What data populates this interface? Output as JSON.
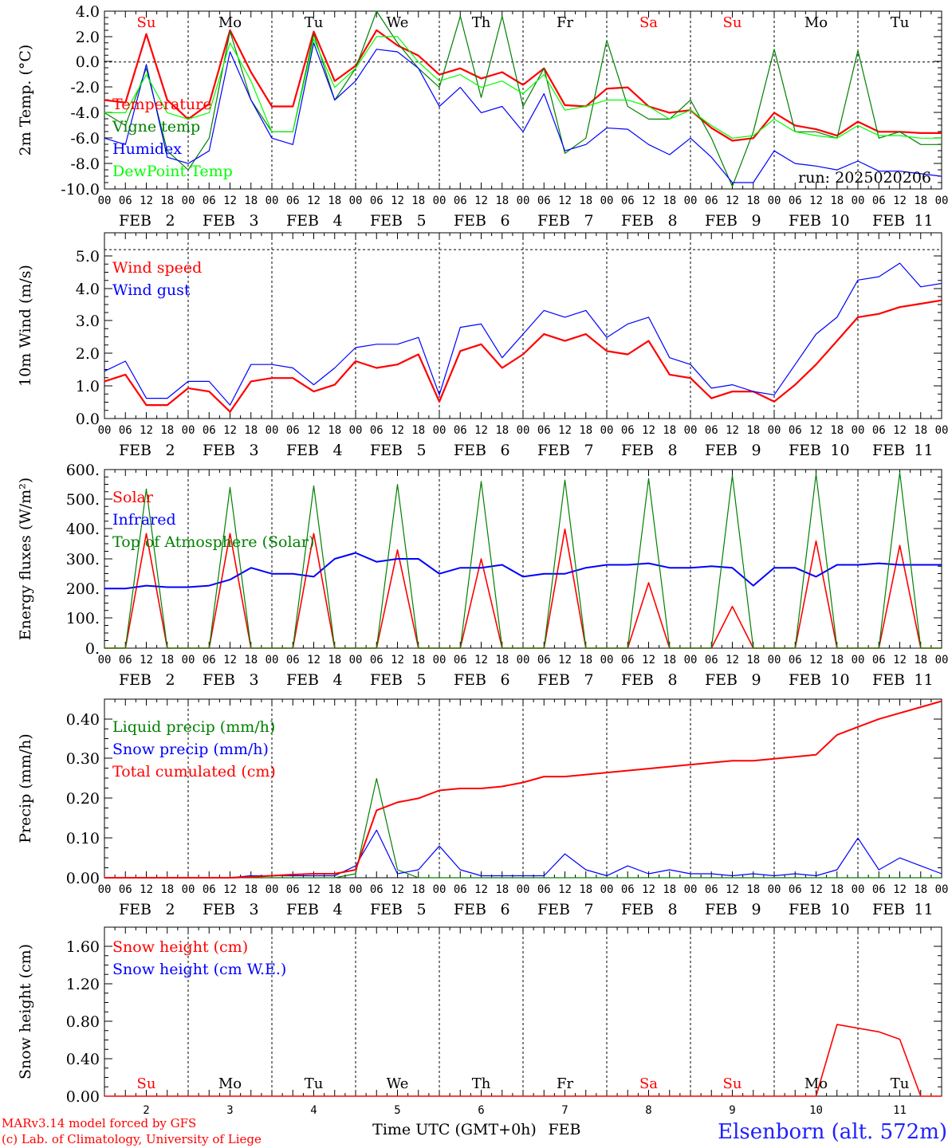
{
  "days": [
    "2",
    "3",
    "4",
    "5",
    "6",
    "7",
    "8",
    "9",
    "10",
    "11"
  ],
  "month": "FEB",
  "hour_labels": [
    "00",
    "06",
    "12",
    "18"
  ],
  "final_hour": "00",
  "weekdays": [
    {
      "label": "Su",
      "color": "#ff0000"
    },
    {
      "label": "Mo",
      "color": "#000000"
    },
    {
      "label": "Tu",
      "color": "#000000"
    },
    {
      "label": "We",
      "color": "#000000"
    },
    {
      "label": "Th",
      "color": "#000000"
    },
    {
      "label": "Fr",
      "color": "#000000"
    },
    {
      "label": "Sa",
      "color": "#ff0000"
    },
    {
      "label": "Su",
      "color": "#ff0000"
    },
    {
      "label": "Mo",
      "color": "#000000"
    },
    {
      "label": "Tu",
      "color": "#000000"
    }
  ],
  "run_label": "run: 2025020206",
  "xlabel": "Time UTC (GMT+0h)",
  "footer": {
    "model": "MARv3.14 model forced by GFS",
    "credit": "(c) Lab. of Climatology, University of Liege",
    "station": "Elsenborn (alt. 572m)"
  },
  "chart_data": [
    {
      "type": "line",
      "ylabel": "2m Temp. (°C)",
      "ylim": [
        -10,
        4
      ],
      "yticks": [
        "4.0",
        "2.0",
        "0.0",
        "-2.0",
        "-4.0",
        "-6.0",
        "-8.0",
        "-10.0"
      ],
      "reference_line": 0,
      "x_hours": [
        0,
        6,
        12,
        18,
        24,
        30,
        36,
        42,
        48,
        54,
        60,
        66,
        72,
        78,
        84,
        90,
        96,
        102,
        108,
        114,
        120,
        126,
        132,
        138,
        144,
        150,
        156,
        162,
        168,
        174,
        180,
        186,
        192,
        198,
        204,
        210,
        216,
        222,
        228,
        234,
        240
      ],
      "series": [
        {
          "name": "Temperature",
          "color": "#ff0000",
          "width": 2.2,
          "values": [
            -3,
            -3.2,
            2.2,
            -3,
            -4.5,
            -3.3,
            2.5,
            -0.8,
            -3.5,
            -3.5,
            2.4,
            -1.5,
            -0.3,
            2.5,
            1.3,
            0.5,
            -1,
            -0.5,
            -1.3,
            -0.8,
            -1.8,
            -0.5,
            -3.4,
            -3.5,
            -2.1,
            -2,
            -3.5,
            -4,
            -3.8,
            -5.2,
            -6.2,
            -6,
            -4,
            -5,
            -5.3,
            -5.8,
            -4.7,
            -5.5,
            -5.5,
            -5.6,
            -5.6
          ]
        },
        {
          "name": "Vigne temp",
          "color": "#008000",
          "width": 1.2,
          "values": [
            -4,
            -5,
            -0.5,
            -7,
            -8.5,
            -6,
            2.4,
            -3,
            -5.5,
            -5.5,
            2.2,
            -3,
            -0.5,
            4,
            1.5,
            -0.5,
            -2,
            3.6,
            -2.8,
            3.6,
            -3.5,
            -0.5,
            -7.2,
            -6,
            1.7,
            -3.5,
            -4.5,
            -4.5,
            -3,
            -6,
            -9.8,
            -5.5,
            1,
            -5.5,
            -5.5,
            -6,
            0.9,
            -6,
            -5.5,
            -6.5,
            -6.5
          ]
        },
        {
          "name": "Humidex",
          "color": "#0000ff",
          "width": 1.2,
          "values": [
            -6,
            -6.5,
            -0.2,
            -7.5,
            -8,
            -7,
            0.8,
            -3,
            -6,
            -6.5,
            1.5,
            -3,
            -1.5,
            1,
            0.8,
            -0.5,
            -3.5,
            -2,
            -4,
            -3.5,
            -5.5,
            -2.5,
            -7,
            -6.5,
            -5.2,
            -5.3,
            -6.5,
            -7.3,
            -6,
            -7.5,
            -9.5,
            -9.5,
            -7,
            -8,
            -8.2,
            -8.5,
            -7.8,
            -8.6,
            -8.6,
            -8.8,
            -9
          ]
        },
        {
          "name": "DewPoint Temp",
          "color": "#00ff00",
          "width": 1.2,
          "values": [
            -4,
            -4,
            -1,
            -4,
            -4.5,
            -4,
            1.5,
            -1.5,
            -5.5,
            -5.5,
            1.8,
            -2,
            -0.5,
            2,
            2,
            0,
            -1.5,
            -1,
            -2,
            -1.5,
            -2.5,
            -1,
            -3.8,
            -3.5,
            -3,
            -3,
            -3.5,
            -4.5,
            -3.8,
            -5,
            -6,
            -5.8,
            -4.5,
            -5.5,
            -5.8,
            -6,
            -5,
            -5.8,
            -5.8,
            -6,
            -6
          ]
        }
      ]
    },
    {
      "type": "line",
      "ylabel": "10m Wind (m/s)",
      "ylim": [
        0,
        5.5
      ],
      "yticks": [
        "5.0",
        "4.0",
        "3.0",
        "2.0",
        "1.0",
        "0.0"
      ],
      "reference_line": 5,
      "x_hours": [
        0,
        6,
        12,
        18,
        24,
        30,
        36,
        42,
        48,
        54,
        60,
        66,
        72,
        78,
        84,
        90,
        96,
        102,
        108,
        114,
        120,
        126,
        132,
        138,
        144,
        150,
        156,
        162,
        168,
        174,
        180,
        186,
        192,
        198,
        204,
        210,
        216,
        222,
        228,
        234,
        240
      ],
      "series": [
        {
          "name": "Wind speed",
          "color": "#ff0000",
          "width": 2.2,
          "values": [
            1.1,
            1.3,
            0.4,
            0.4,
            0.9,
            0.8,
            0.2,
            1.1,
            1.2,
            1.2,
            0.8,
            1.0,
            1.7,
            1.5,
            1.6,
            1.9,
            0.5,
            2.0,
            2.2,
            1.5,
            1.9,
            2.5,
            2.3,
            2.5,
            2.0,
            1.9,
            2.3,
            1.3,
            1.2,
            0.6,
            0.8,
            0.8,
            0.5,
            1.0,
            1.6,
            2.3,
            3.0,
            3.1,
            3.3,
            3.4,
            3.5
          ]
        },
        {
          "name": "Wind gust",
          "color": "#0000ff",
          "width": 1.2,
          "values": [
            1.4,
            1.7,
            0.6,
            0.6,
            1.1,
            1.1,
            0.4,
            1.6,
            1.6,
            1.5,
            1.0,
            1.5,
            2.1,
            2.2,
            2.2,
            2.4,
            0.7,
            2.7,
            2.8,
            1.8,
            2.5,
            3.2,
            3.0,
            3.2,
            2.4,
            2.8,
            3.0,
            1.8,
            1.6,
            0.9,
            1.0,
            0.8,
            0.7,
            1.6,
            2.5,
            3.0,
            4.1,
            4.2,
            4.6,
            3.9,
            4.0
          ]
        }
      ]
    },
    {
      "type": "line",
      "ylabel": "Energy fluxes (W/m²)",
      "ylim": [
        0,
        600
      ],
      "yticks": [
        "600.",
        "500.",
        "400.",
        "300.",
        "200.",
        "100.",
        "0."
      ],
      "x_hours": [
        0,
        6,
        12,
        18,
        24,
        30,
        36,
        42,
        48,
        54,
        60,
        66,
        72,
        78,
        84,
        90,
        96,
        102,
        108,
        114,
        120,
        126,
        132,
        138,
        144,
        150,
        156,
        162,
        168,
        174,
        180,
        186,
        192,
        198,
        204,
        210,
        216,
        222,
        228,
        234,
        240
      ],
      "series": [
        {
          "name": "Solar",
          "color": "#ff0000",
          "width": 1.6,
          "values": [
            0,
            0,
            385,
            0,
            0,
            0,
            385,
            0,
            0,
            0,
            385,
            0,
            0,
            0,
            330,
            0,
            0,
            0,
            300,
            0,
            0,
            0,
            400,
            0,
            0,
            0,
            220,
            0,
            0,
            0,
            140,
            0,
            0,
            0,
            360,
            0,
            0,
            0,
            345,
            0,
            0
          ]
        },
        {
          "name": "Infrared",
          "color": "#0000ff",
          "width": 2.0,
          "values": [
            200,
            200,
            210,
            205,
            205,
            210,
            230,
            270,
            250,
            250,
            240,
            300,
            320,
            290,
            300,
            300,
            250,
            270,
            270,
            280,
            240,
            250,
            250,
            270,
            280,
            280,
            285,
            270,
            270,
            275,
            270,
            210,
            270,
            270,
            240,
            280,
            280,
            285,
            280,
            280,
            280
          ]
        },
        {
          "name": "Top of Atmosphere (Solar)",
          "color": "#008000",
          "width": 1.2,
          "values": [
            0,
            0,
            535,
            0,
            0,
            0,
            540,
            0,
            0,
            0,
            545,
            0,
            0,
            0,
            550,
            0,
            0,
            0,
            560,
            0,
            0,
            0,
            565,
            0,
            0,
            0,
            570,
            0,
            0,
            0,
            580,
            0,
            0,
            0,
            585,
            0,
            0,
            0,
            590,
            0,
            0
          ]
        }
      ]
    },
    {
      "type": "line",
      "ylabel": "Precip (mm/h)",
      "ylim": [
        0,
        0.45
      ],
      "yticks": [
        "0.40",
        "0.30",
        "0.20",
        "0.10",
        "0.00"
      ],
      "x_hours": [
        0,
        6,
        12,
        18,
        24,
        30,
        36,
        42,
        48,
        54,
        60,
        66,
        72,
        78,
        84,
        90,
        96,
        102,
        108,
        114,
        120,
        126,
        132,
        138,
        144,
        150,
        156,
        162,
        168,
        174,
        180,
        186,
        192,
        198,
        204,
        210,
        216,
        222,
        228,
        234,
        240
      ],
      "series": [
        {
          "name": "Liquid precip (mm/h)",
          "color": "#008000",
          "width": 1.2,
          "values": [
            0,
            0,
            0,
            0,
            0,
            0,
            0,
            0,
            0,
            0,
            0,
            0,
            0.01,
            0.25,
            0.02,
            0,
            0,
            0,
            0,
            0,
            0,
            0,
            0,
            0,
            0,
            0,
            0,
            0,
            0,
            0,
            0,
            0,
            0,
            0,
            0,
            0,
            0,
            0,
            0,
            0,
            0
          ]
        },
        {
          "name": "Snow precip (mm/h)",
          "color": "#0000ff",
          "width": 1.2,
          "values": [
            0,
            0,
            0,
            0,
            0,
            0,
            0,
            0.005,
            0.005,
            0.005,
            0.005,
            0.005,
            0.03,
            0.12,
            0.01,
            0.02,
            0.08,
            0.02,
            0.005,
            0.005,
            0.005,
            0.005,
            0.06,
            0.02,
            0.005,
            0.03,
            0.01,
            0.02,
            0.01,
            0.01,
            0.005,
            0.01,
            0.005,
            0.01,
            0.005,
            0.02,
            0.1,
            0.02,
            0.05,
            0.03,
            0.01
          ]
        },
        {
          "name": "Total cumulated (cm)",
          "color": "#ff0000",
          "width": 2.0,
          "values": [
            0,
            0,
            0,
            0,
            0,
            0,
            0,
            0.002,
            0.005,
            0.008,
            0.01,
            0.01,
            0.02,
            0.17,
            0.19,
            0.2,
            0.22,
            0.225,
            0.225,
            0.23,
            0.24,
            0.255,
            0.255,
            0.26,
            0.265,
            0.27,
            0.275,
            0.28,
            0.285,
            0.29,
            0.295,
            0.295,
            0.3,
            0.305,
            0.31,
            0.36,
            0.38,
            0.4,
            0.415,
            0.43,
            0.445
          ]
        }
      ]
    },
    {
      "type": "line",
      "ylabel": "Snow height (cm)",
      "ylim": [
        0,
        1.84
      ],
      "yticks": [
        "1.60",
        "1.20",
        "0.80",
        "0.40",
        "0.00"
      ],
      "x_hours": [
        0,
        6,
        12,
        18,
        24,
        30,
        36,
        42,
        48,
        54,
        60,
        66,
        72,
        78,
        84,
        90,
        96,
        102,
        108,
        114,
        120,
        126,
        132,
        138,
        144,
        150,
        156,
        162,
        168,
        174,
        180,
        186,
        192,
        198,
        204,
        210,
        216,
        222,
        228,
        234,
        240
      ],
      "series": [
        {
          "name": "Snow height (cm)",
          "color": "#ff0000",
          "width": 1.6,
          "values": [
            0,
            0,
            0,
            0,
            0,
            0,
            0,
            0,
            0,
            0,
            0,
            0,
            0,
            0,
            0,
            0,
            0,
            0,
            0,
            0,
            0,
            0,
            0,
            0,
            0,
            0,
            0,
            0,
            0,
            0,
            0,
            0,
            0,
            0,
            0,
            0.78,
            0.74,
            0.7,
            0.62,
            0,
            0
          ]
        },
        {
          "name": "Snow height (cm W.E.)",
          "color": "#0000ff",
          "width": 1.2,
          "values": []
        }
      ]
    }
  ]
}
